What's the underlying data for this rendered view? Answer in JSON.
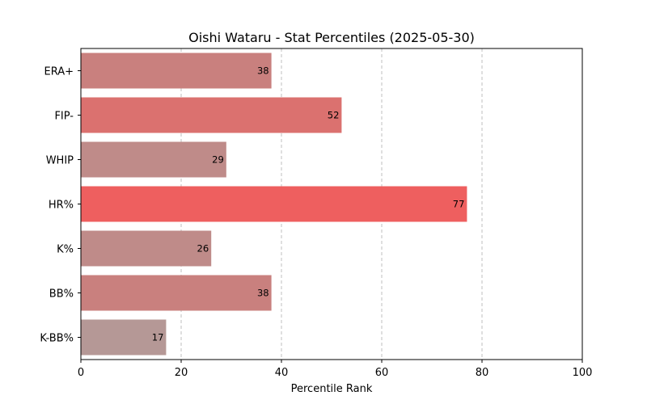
{
  "chart_data": {
    "type": "bar",
    "orientation": "horizontal",
    "title": "Oishi Wataru - Stat Percentiles (2025-05-30)",
    "xlabel": "Percentile Rank",
    "ylabel": "",
    "xlim": [
      0,
      100
    ],
    "xticks": [
      "0",
      "20",
      "40",
      "60",
      "80",
      "100"
    ],
    "grid": "x-dashed",
    "categories": [
      "ERA+",
      "FIP-",
      "WHIP",
      "HR%",
      "K%",
      "BB%",
      "K-BB%"
    ],
    "values": [
      38,
      52,
      29,
      77,
      26,
      38,
      17
    ],
    "colors": [
      "#c9807e",
      "#db716f",
      "#bf8b89",
      "#ee5f5f",
      "#bf8b89",
      "#c9807e",
      "#b59896"
    ]
  }
}
